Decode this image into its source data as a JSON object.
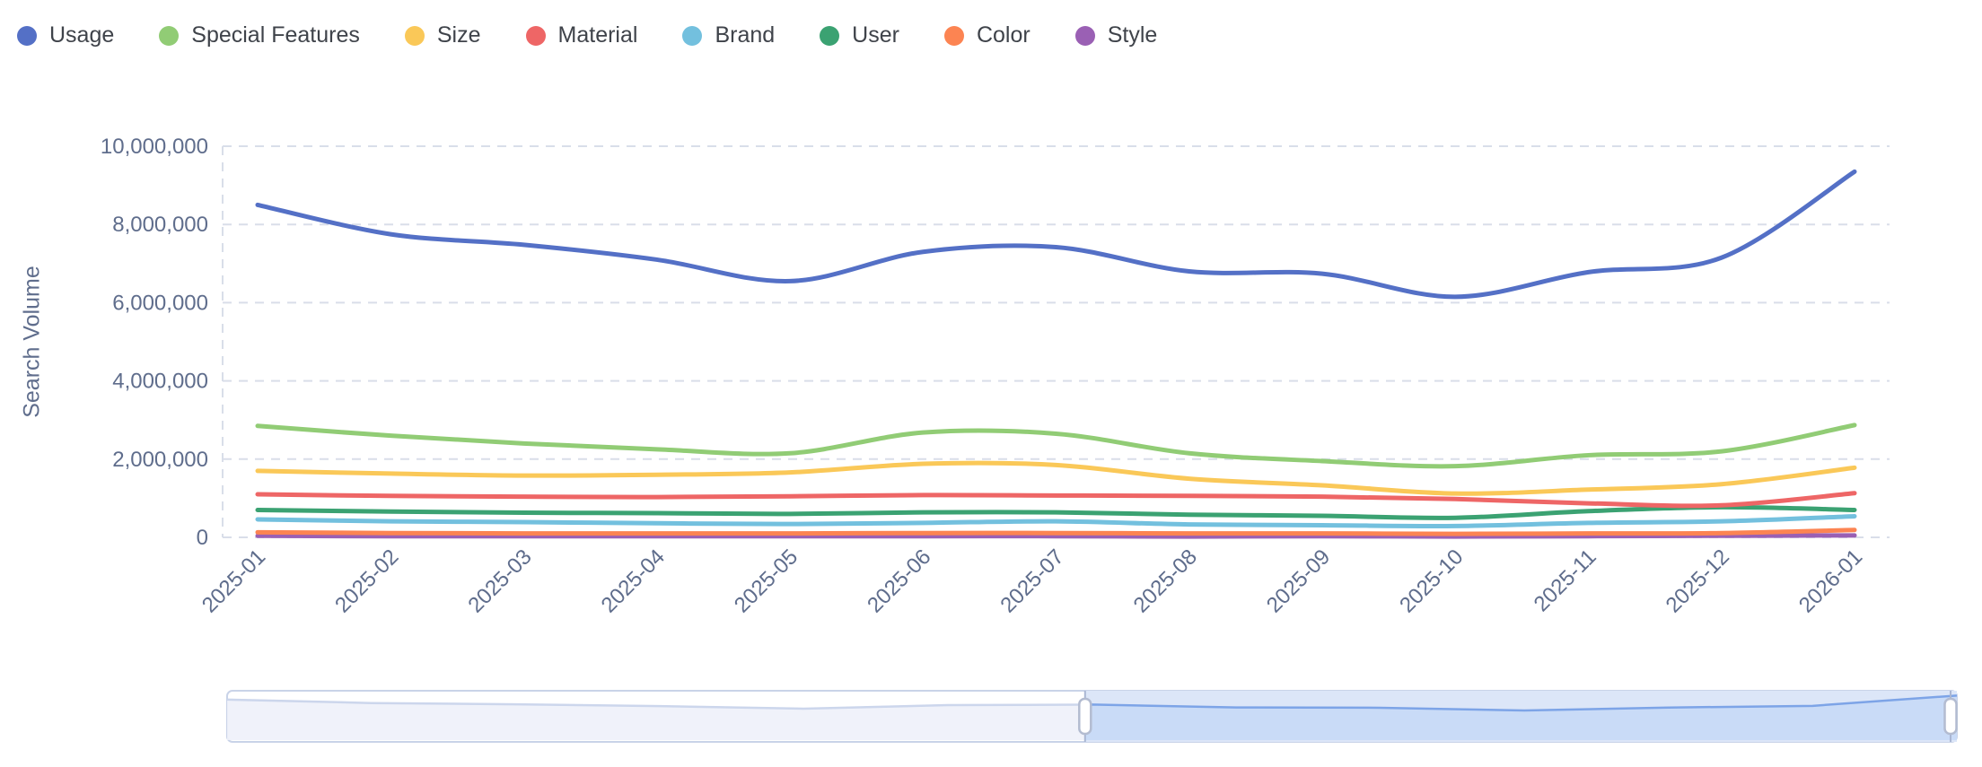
{
  "legend": {
    "items": [
      "Usage",
      "Special Features",
      "Size",
      "Material",
      "Brand",
      "User",
      "Color",
      "Style"
    ]
  },
  "chart_data": {
    "type": "line",
    "smooth": true,
    "title": "",
    "xlabel": "",
    "ylabel": "Search Volume",
    "ylim": [
      0,
      10000000
    ],
    "grid": "horizontal-dashed",
    "legend_position": "top-left",
    "y_ticks": [
      "0",
      "2,000,000",
      "4,000,000",
      "6,000,000",
      "8,000,000",
      "10,000,000"
    ],
    "categories": [
      "2025-01",
      "2025-02",
      "2025-03",
      "2025-04",
      "2025-05",
      "2025-06",
      "2025-07",
      "2025-08",
      "2025-09",
      "2025-10",
      "2025-11",
      "2025-12",
      "2026-01"
    ],
    "series": [
      {
        "name": "Usage",
        "color": "#5470c6",
        "values": [
          8500000,
          7750000,
          7480000,
          7100000,
          6550000,
          7300000,
          7420000,
          6800000,
          6740000,
          6150000,
          6780000,
          7150000,
          9350000
        ]
      },
      {
        "name": "Special Features",
        "color": "#91cc75",
        "values": [
          2850000,
          2600000,
          2400000,
          2250000,
          2150000,
          2680000,
          2650000,
          2150000,
          1950000,
          1820000,
          2100000,
          2200000,
          2870000
        ]
      },
      {
        "name": "Size",
        "color": "#fac858",
        "values": [
          1700000,
          1630000,
          1580000,
          1600000,
          1660000,
          1880000,
          1850000,
          1500000,
          1330000,
          1120000,
          1220000,
          1360000,
          1780000
        ]
      },
      {
        "name": "Material",
        "color": "#ee6666",
        "values": [
          1100000,
          1060000,
          1040000,
          1030000,
          1050000,
          1080000,
          1070000,
          1060000,
          1040000,
          980000,
          870000,
          820000,
          1130000
        ]
      },
      {
        "name": "Brand",
        "color": "#73c0de",
        "values": [
          460000,
          410000,
          390000,
          360000,
          340000,
          370000,
          410000,
          330000,
          310000,
          290000,
          370000,
          410000,
          540000
        ]
      },
      {
        "name": "User",
        "color": "#3ba272",
        "values": [
          700000,
          660000,
          630000,
          620000,
          600000,
          640000,
          640000,
          580000,
          550000,
          500000,
          670000,
          770000,
          700000
        ]
      },
      {
        "name": "Color",
        "color": "#fc8452",
        "values": [
          130000,
          110000,
          100000,
          100000,
          100000,
          110000,
          110000,
          100000,
          100000,
          90000,
          100000,
          110000,
          190000
        ]
      },
      {
        "name": "Style",
        "color": "#9a60b4",
        "values": [
          40000,
          30000,
          30000,
          30000,
          30000,
          30000,
          30000,
          20000,
          30000,
          20000,
          30000,
          40000,
          50000
        ]
      }
    ]
  },
  "slider": {
    "selected_start_pct": 49.6,
    "selected_end_pct": 100,
    "shadow_series": "Usage"
  },
  "colors": {
    "axis_label": "#5f6d8c",
    "grid_line": "#d9dee9",
    "legend_text": "#3f434a",
    "slider_border": "#c9d3e8",
    "slider_selected_bg": "#dce6f8",
    "slider_shadow_line": "#ccd6ec",
    "slider_shadow_fill": "#eef1f9",
    "slider_selected_line": "#7da4e7",
    "slider_selected_fill": "#c7d9f6",
    "slider_handle_border": "#b3bcd1",
    "slider_stem": "#a9b6d3"
  }
}
